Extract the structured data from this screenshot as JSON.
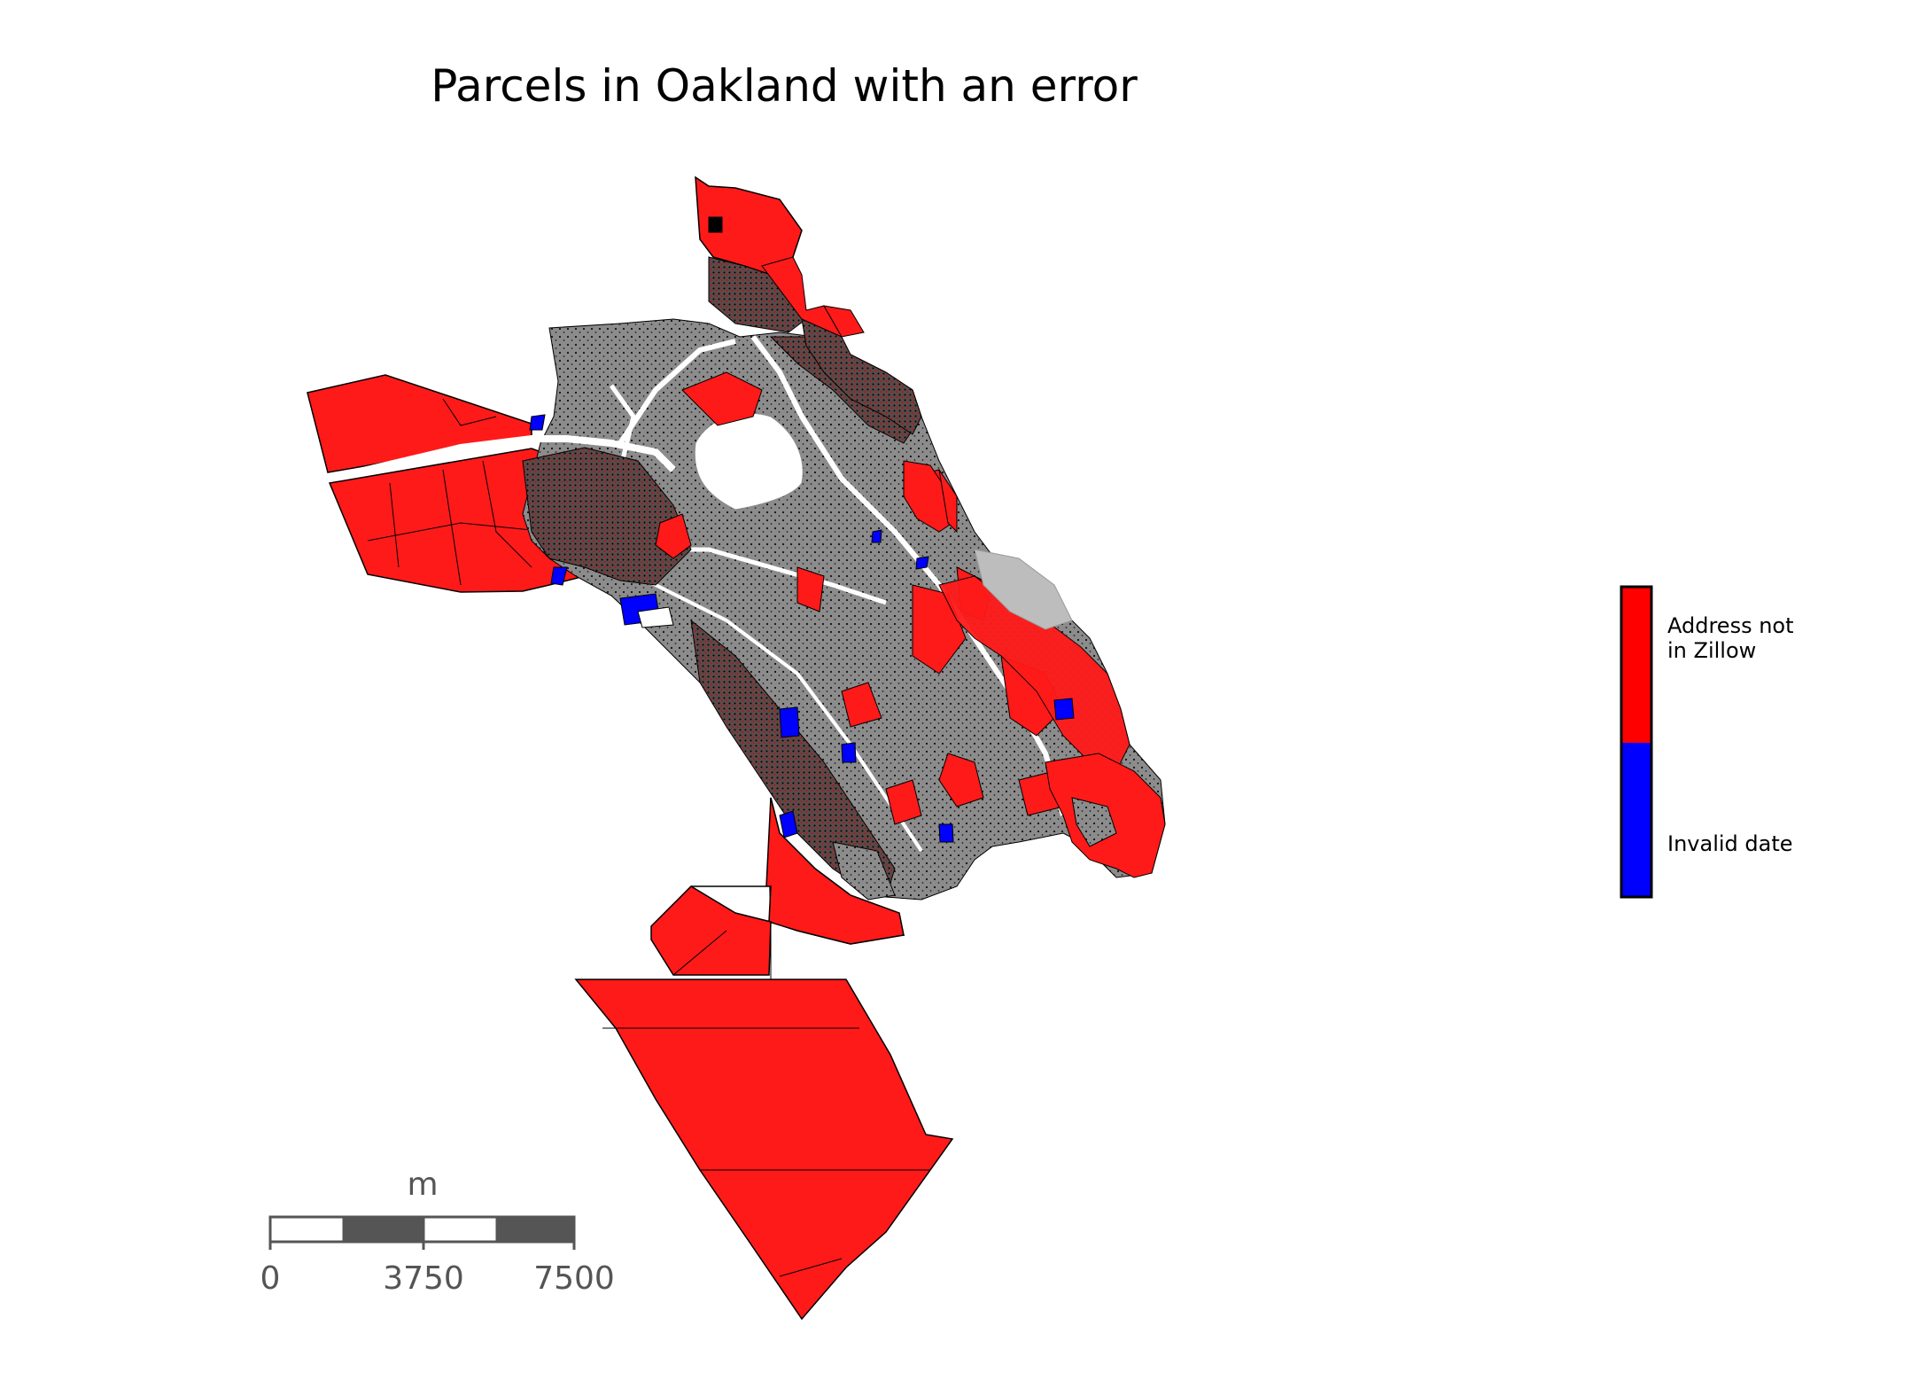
{
  "title": "Parcels in Oakland with an error",
  "colors": {
    "address_not_in_zillow": "#ff1a1a",
    "invalid_date": "#0000ff",
    "no_error": "#8c8c8c",
    "outline": "#000000",
    "scale_bar": "#555555"
  },
  "legend": {
    "items": [
      {
        "label": "Address not\nin Zillow",
        "color": "#ff0000"
      },
      {
        "label": "Invalid date",
        "color": "#0000ff"
      }
    ]
  },
  "scale_bar": {
    "unit": "m",
    "ticks": [
      "0",
      "3750",
      "7500"
    ]
  }
}
